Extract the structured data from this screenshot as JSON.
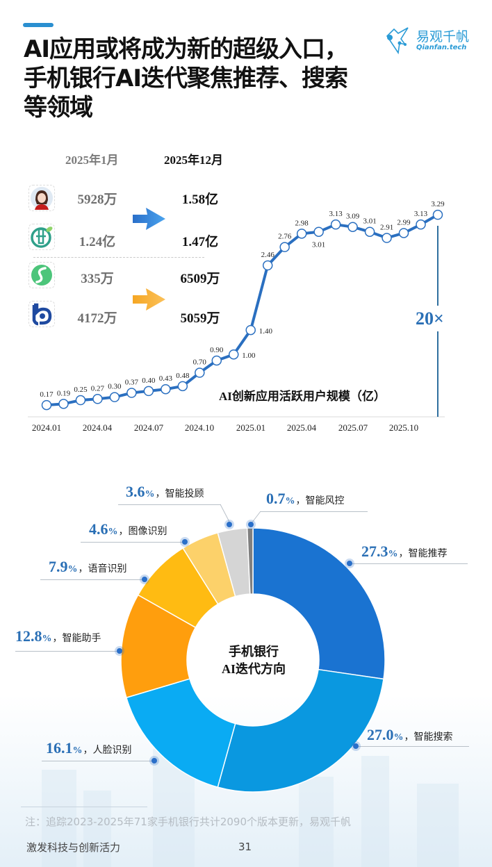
{
  "header": {
    "title_lines": [
      "AI应用或将成为新的超级入口，",
      "手机银行AI迭代聚焦推荐、搜索",
      "等领域"
    ],
    "logo_cn": "易观千帆",
    "logo_en": "Qianfan.tech",
    "accent_color": "#2a8fd0"
  },
  "comparison": {
    "col_from": "2025年1月",
    "col_to": "2025年12月",
    "rows": [
      {
        "icon": "avatar-assistant-icon",
        "from": "5928万",
        "to": "1.58亿"
      },
      {
        "icon": "abc-bank-logo-icon",
        "from": "1.24亿",
        "to": "1.47亿"
      },
      {
        "icon": "green-s-logo-icon",
        "from": "335万",
        "to": "6509万"
      },
      {
        "icon": "blue-b-logo-icon",
        "from": "4172万",
        "to": "5059万"
      }
    ],
    "arrow_colors": [
      "#2f7fd6",
      "#f5a623"
    ]
  },
  "chart_data": [
    {
      "type": "line",
      "title": "AI创新应用活跃用户规模（亿）",
      "xlabel": "",
      "ylabel": "",
      "x": [
        "2024.01",
        "2024.02",
        "2024.03",
        "2024.04",
        "2024.05",
        "2024.06",
        "2024.07",
        "2024.08",
        "2024.09",
        "2024.10",
        "2024.11",
        "2024.12",
        "2025.01",
        "2025.02",
        "2025.03",
        "2025.04",
        "2025.05",
        "2025.06",
        "2025.07",
        "2025.08",
        "2025.09",
        "2025.10",
        "2025.11",
        "2025.12"
      ],
      "x_tick_labels": [
        "2024.01",
        "2024.04",
        "2024.07",
        "2024.10",
        "2025.01",
        "2025.04",
        "2025.07",
        "2025.10"
      ],
      "values": [
        0.17,
        0.19,
        0.25,
        0.27,
        0.3,
        0.37,
        0.4,
        0.43,
        0.48,
        0.7,
        0.9,
        1.0,
        1.4,
        2.46,
        2.76,
        2.98,
        3.01,
        3.13,
        3.09,
        3.01,
        2.91,
        2.99,
        3.13,
        3.29
      ],
      "annotation": "20×",
      "grid": false,
      "line_color": "#2a6fc0"
    },
    {
      "type": "pie",
      "title": "手机银行AI迭代方向",
      "center_label": [
        "手机银行",
        "AI迭代方向"
      ],
      "categories": [
        "智能推荐",
        "智能搜索",
        "人脸识别",
        "智能助手",
        "语音识别",
        "图像识别",
        "智能投顾",
        "智能风控"
      ],
      "values": [
        27.3,
        27.0,
        16.1,
        12.8,
        7.9,
        4.6,
        3.6,
        0.7
      ],
      "colors": [
        "#1a73d1",
        "#0a98e0",
        "#0aabf3",
        "#ff9e0d",
        "#ffbb12",
        "#fcd16a",
        "#d5d5d5",
        "#7f7f7f"
      ],
      "donut": true
    }
  ],
  "chart_labels": {
    "line_title": "AI创新应用活跃用户规模（亿）",
    "multiplier": "20×",
    "x_ticks": [
      "2024.01",
      "2024.04",
      "2024.07",
      "2024.10",
      "2025.01",
      "2025.04",
      "2025.07",
      "2025.10"
    ],
    "center": [
      "手机银行",
      "AI迭代方向"
    ],
    "slices": [
      {
        "pct": "27.3",
        "name": "，智能推荐"
      },
      {
        "pct": "27.0",
        "name": "，智能搜索"
      },
      {
        "pct": "16.1",
        "name": "，人脸识别"
      },
      {
        "pct": "12.8",
        "name": "，智能助手"
      },
      {
        "pct": "7.9",
        "name": "，语音识别"
      },
      {
        "pct": "4.6",
        "name": "，图像识别"
      },
      {
        "pct": "3.6",
        "name": "，智能投顾"
      },
      {
        "pct": "0.7",
        "name": "，智能风控"
      }
    ],
    "pct_sign": "%"
  },
  "footer": {
    "note": "注：追踪2023-2025年71家手机银行共计2090个版本更新，易观千帆",
    "slogan": "激发科技与创新活力",
    "page": "31"
  }
}
